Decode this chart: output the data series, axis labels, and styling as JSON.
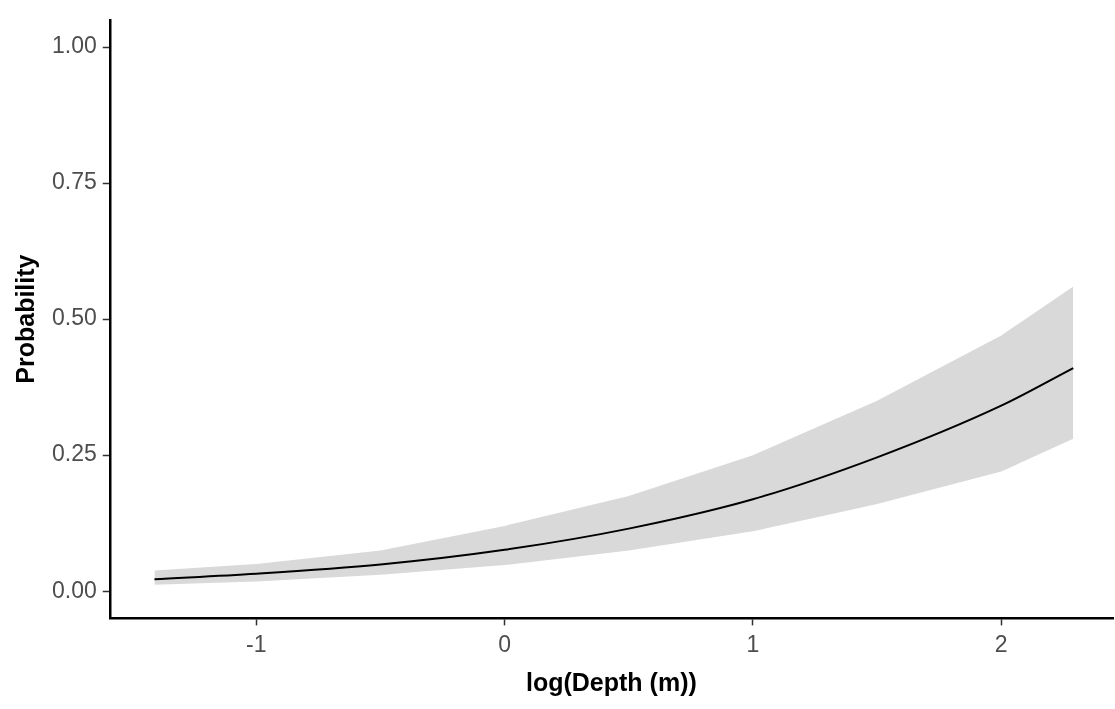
{
  "chart_data": {
    "type": "line",
    "xlabel": "log(Depth (m))",
    "ylabel": "Probability",
    "x": [
      -1.41,
      -1,
      -0.5,
      0,
      0.5,
      1,
      1.5,
      2,
      2.29
    ],
    "series": [
      {
        "color": "#000000",
        "values": [
          0.022,
          0.032,
          0.049,
          0.076,
          0.115,
          0.169,
          0.246,
          0.341,
          0.41
        ],
        "lower": [
          0.012,
          0.018,
          0.03,
          0.048,
          0.075,
          0.11,
          0.16,
          0.22,
          0.28
        ],
        "upper": [
          0.038,
          0.05,
          0.075,
          0.12,
          0.175,
          0.25,
          0.35,
          0.47,
          0.56
        ]
      }
    ],
    "xlim": [
      -1.59,
      2.45
    ],
    "xticks": [
      -1,
      0,
      1,
      2
    ],
    "ylim": [
      -0.05,
      1.05
    ],
    "yticks": [
      {
        "value": 0,
        "label": "0.00"
      },
      {
        "value": 0.25,
        "label": "0.25"
      },
      {
        "value": 0.5,
        "label": "0.50"
      },
      {
        "value": 0.75,
        "label": "0.75"
      },
      {
        "value": 1,
        "label": "1.00"
      }
    ],
    "grid": false,
    "legend": false,
    "marker": "none"
  }
}
